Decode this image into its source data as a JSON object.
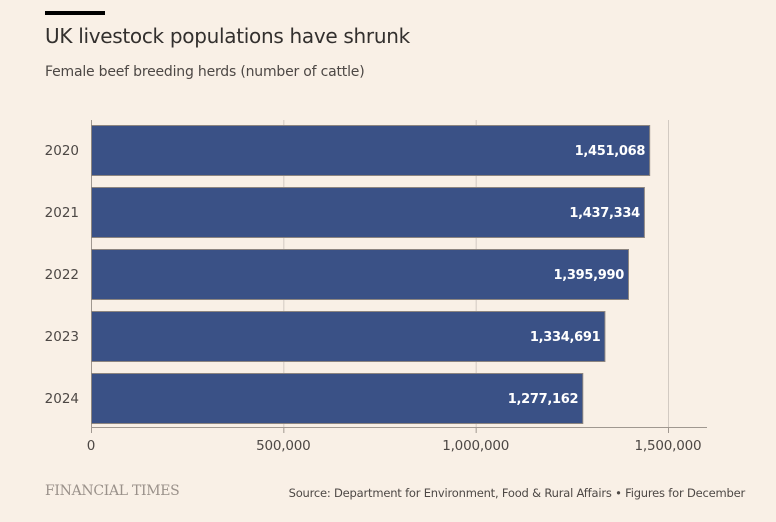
{
  "header": {
    "title": "UK livestock populations have shrunk",
    "subtitle": "Female beef breeding herds (number of cattle)"
  },
  "footer": {
    "brand": "FINANCIAL TIMES",
    "source": "Source: Department for Environment, Food & Rural Affairs • Figures for December"
  },
  "colors": {
    "background": "#f9f0e6",
    "bar_fill": "#3a5186",
    "bar_stroke": "#8c8580",
    "gridline": "#d2cac2",
    "axis": "#a09890",
    "label_text": "#ffffff"
  },
  "chart_data": {
    "type": "bar",
    "orientation": "horizontal",
    "title": "UK livestock populations have shrunk",
    "subtitle": "Female beef breeding herds (number of cattle)",
    "categories": [
      "2020",
      "2021",
      "2022",
      "2023",
      "2024"
    ],
    "values": [
      1451068,
      1437334,
      1395990,
      1334691,
      1277162
    ],
    "value_labels": [
      "1,451,068",
      "1,437,334",
      "1,395,990",
      "1,334,691",
      "1,277,162"
    ],
    "xlabel": "",
    "ylabel": "",
    "xlim": [
      0,
      1600000
    ],
    "x_ticks": [
      0,
      500000,
      1000000,
      1500000
    ],
    "x_tick_labels": [
      "0",
      "500,000",
      "1,000,000",
      "1,500,000"
    ],
    "grid": true,
    "legend": "none"
  }
}
